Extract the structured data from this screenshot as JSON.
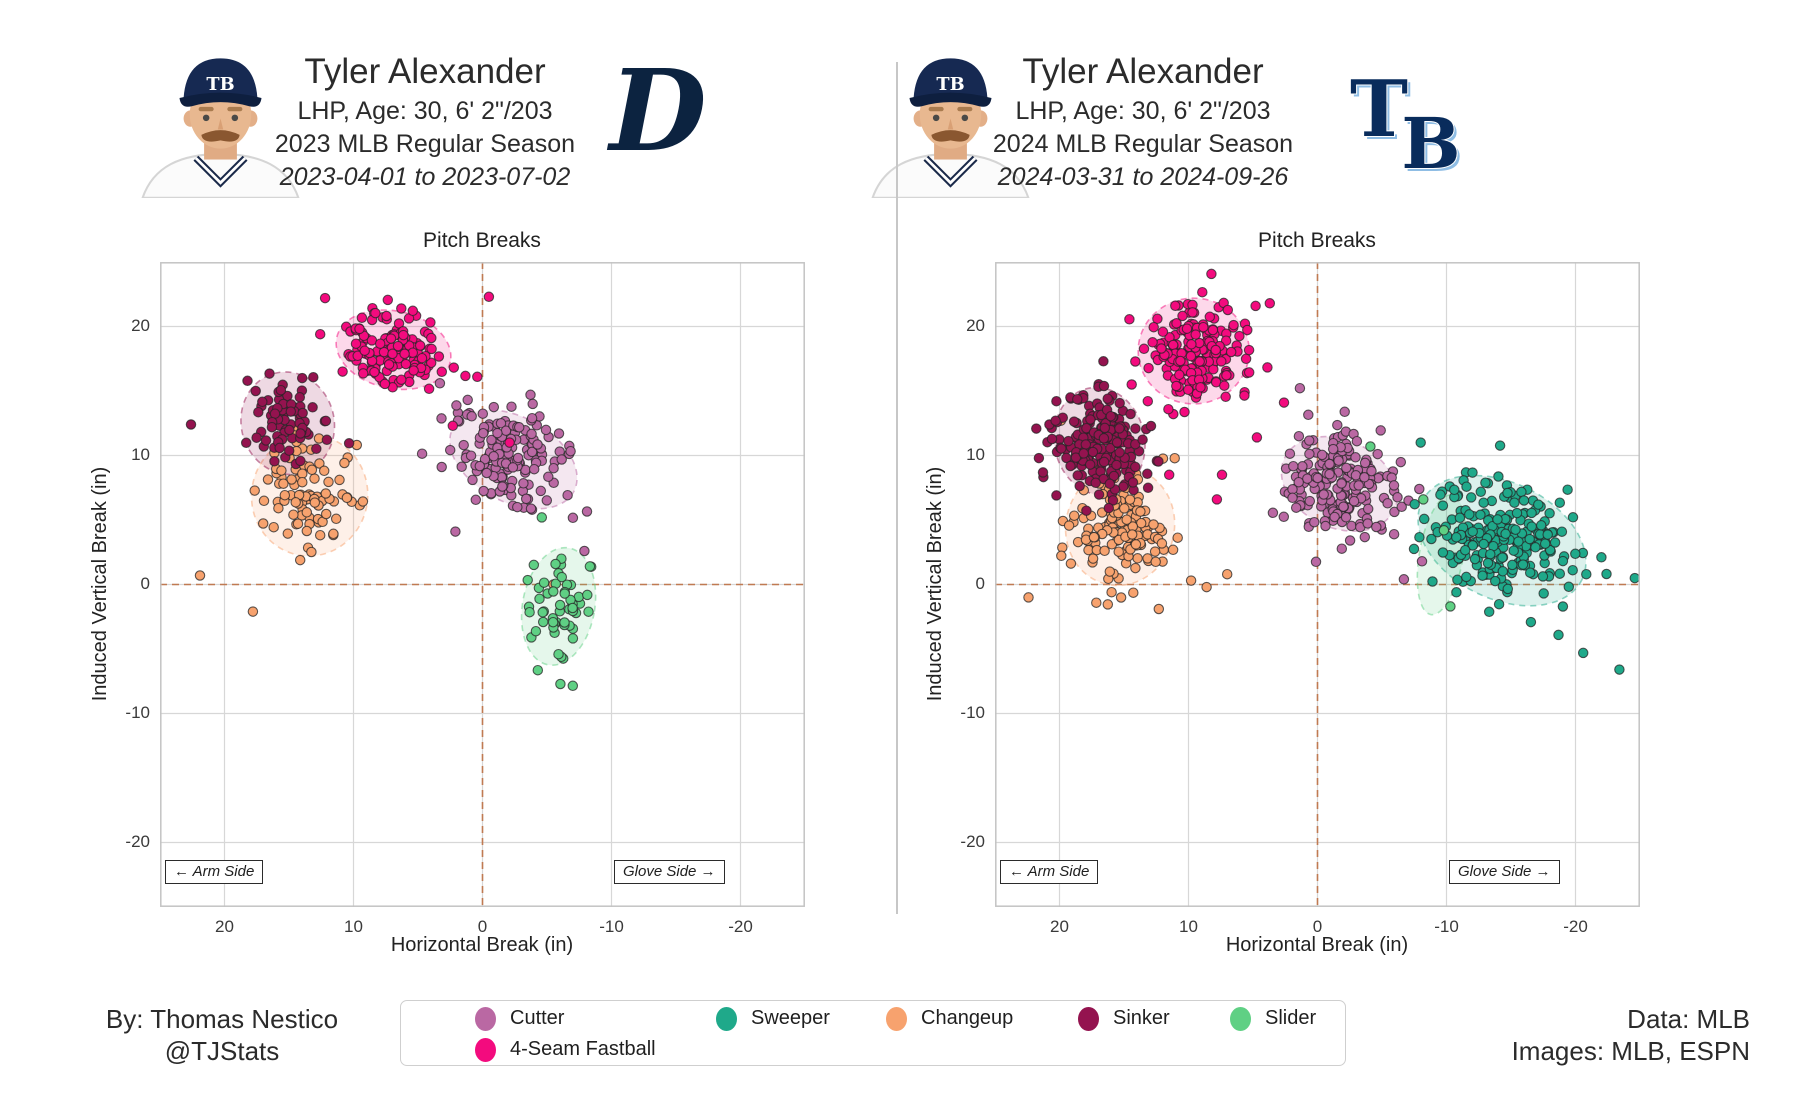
{
  "panels": [
    {
      "player": {
        "name": "Tyler Alexander",
        "bio": "LHP, Age: 30, 6' 2\"/203",
        "season": "2023 MLB Regular Season",
        "date_range": "2023-04-01 to 2023-07-02"
      },
      "team": {
        "abbr": "DET",
        "logo_letters": "D",
        "logo_color": "#0C2340"
      },
      "plot_labels": {
        "arm": "← Arm Side",
        "glove": "Glove Side →"
      }
    },
    {
      "player": {
        "name": "Tyler Alexander",
        "bio": "LHP, Age: 30, 6' 2\"/203",
        "season": "2024 MLB Regular Season",
        "date_range": "2024-03-31 to 2024-09-26"
      },
      "team": {
        "abbr": "TB",
        "logo_letters": "TB",
        "logo_color": "#092C5C",
        "logo_accent": "#8FBDE4"
      },
      "plot_labels": {
        "arm": "← Arm Side",
        "glove": "Glove Side →"
      }
    }
  ],
  "cap_logo_text": "TB",
  "footer": {
    "credit_line1": "By: Thomas Nestico",
    "credit_line2": "@TJStats",
    "source_line1": "Data: MLB",
    "source_line2": "Images: MLB, ESPN"
  },
  "legend": {
    "items": [
      {
        "label": "Cutter",
        "color": "#BA68A3"
      },
      {
        "label": "Sweeper",
        "color": "#1FA98A"
      },
      {
        "label": "Changeup",
        "color": "#F7A26E"
      },
      {
        "label": "Sinker",
        "color": "#94134F"
      },
      {
        "label": "Slider",
        "color": "#5FD084"
      },
      {
        "label": "4-Seam Fastball",
        "color": "#F30B7E"
      }
    ]
  },
  "style": {
    "grid": "#d7d7d7",
    "frame": "#c3c3c3",
    "crosshair": "#c07a52",
    "point_edge": "#262626",
    "ellipse_fill_alpha": 0.16,
    "ellipse_stroke_alpha": 0.5
  },
  "chart_data": [
    {
      "panel": "2023 MLB Regular Season (DET)",
      "type": "scatter",
      "title": "Pitch Breaks",
      "xlabel": "Horizontal Break (in)",
      "ylabel": "Induced Vertical Break (in)",
      "x_ticks": [
        20,
        10,
        0,
        -10,
        -20
      ],
      "y_ticks": [
        20,
        10,
        0,
        -10,
        -20
      ],
      "xlim": [
        25,
        -25
      ],
      "ylim": [
        -25,
        25
      ],
      "grid": true,
      "zero_crosshair": true,
      "points_note": "Dense point clouds regenerated from digitized cluster params: cx/cy = cluster mean (in), sx/sy = std dev (in), tilt = major-axis angle (deg), n = pitch count; extra = individually digitized outlier points [HB, IVB].",
      "clusters": [
        {
          "pitch": "Cutter",
          "color": "#BA68A3",
          "n": 160,
          "cx": -2.4,
          "cy": 9.7,
          "sx": 2.5,
          "sy": 1.7,
          "tilt": 28,
          "extra": [
            [
              3.3,
              15.6
            ],
            [
              1.9,
              12.7
            ],
            [
              2.1,
              4.1
            ],
            [
              -7.9,
              2.6
            ]
          ],
          "ellipse": {
            "rx": 5.3,
            "ry": 3.3
          }
        },
        {
          "pitch": "4-Seam Fastball",
          "color": "#F30B7E",
          "n": 148,
          "cx": 6.9,
          "cy": 18.2,
          "sx": 2.1,
          "sy": 1.5,
          "tilt": 12,
          "extra": [
            [
              -0.5,
              22.3
            ],
            [
              0.4,
              16.1
            ],
            [
              2.3,
              12.3
            ],
            [
              -2.1,
              11.0
            ],
            [
              12.2,
              22.2
            ]
          ],
          "ellipse": {
            "rx": 4.5,
            "ry": 3.0
          }
        },
        {
          "pitch": "Changeup",
          "color": "#F7A26E",
          "n": 92,
          "cx": 13.4,
          "cy": 6.9,
          "sx": 1.9,
          "sy": 2.0,
          "tilt": 10,
          "extra": [
            [
              21.9,
              0.7
            ],
            [
              17.8,
              -2.1
            ],
            [
              -5.5,
              0.0
            ]
          ],
          "ellipse": {
            "rx": 4.5,
            "ry": 4.7
          }
        },
        {
          "pitch": "Sinker",
          "color": "#94134F",
          "n": 76,
          "cx": 15.1,
          "cy": 12.5,
          "sx": 1.7,
          "sy": 1.8,
          "tilt": -15,
          "extra": [
            [
              22.6,
              12.4
            ]
          ],
          "ellipse": {
            "rx": 3.6,
            "ry": 4.0
          }
        },
        {
          "pitch": "Slider",
          "color": "#5FD084",
          "n": 55,
          "cx": -5.9,
          "cy": -1.7,
          "sx": 1.4,
          "sy": 2.2,
          "tilt": 10,
          "extra": [
            [
              -4.6,
              5.2
            ]
          ],
          "ellipse": {
            "rx": 2.8,
            "ry": 4.6
          }
        }
      ]
    },
    {
      "panel": "2024 MLB Regular Season (TB)",
      "type": "scatter",
      "title": "Pitch Breaks",
      "xlabel": "Horizontal Break (in)",
      "ylabel": "Induced Vertical Break (in)",
      "x_ticks": [
        20,
        10,
        0,
        -10,
        -20
      ],
      "y_ticks": [
        20,
        10,
        0,
        -10,
        -20
      ],
      "xlim": [
        25,
        -25
      ],
      "ylim": [
        -25,
        25
      ],
      "grid": true,
      "zero_crosshair": true,
      "points_note": "Dense point clouds regenerated from digitized cluster params: cx/cy = cluster mean (in), sx/sy = std dev (in), tilt = major-axis angle (deg), n = pitch count; extra = individually digitized outlier points [HB, IVB].",
      "clusters": [
        {
          "pitch": "Cutter",
          "color": "#BA68A3",
          "n": 205,
          "cx": -1.7,
          "cy": 7.8,
          "sx": 2.2,
          "sy": 2.0,
          "tilt": 25,
          "extra": [
            [
              -6.7,
              0.4
            ],
            [
              -8.1,
              1.8
            ],
            [
              -11.5,
              3.5
            ]
          ],
          "ellipse": {
            "rx": 4.7,
            "ry": 3.4
          }
        },
        {
          "pitch": "4-Seam Fastball",
          "color": "#F30B7E",
          "n": 182,
          "cx": 9.6,
          "cy": 18.1,
          "sx": 1.9,
          "sy": 1.8,
          "tilt": 0,
          "extra": [
            [
              14.4,
              15.5
            ],
            [
              2.6,
              14.1
            ],
            [
              4.7,
              11.4
            ],
            [
              7.4,
              8.5
            ],
            [
              11.5,
              8.5
            ],
            [
              7.8,
              6.6
            ],
            [
              4.8,
              21.6
            ],
            [
              3.7,
              21.8
            ]
          ],
          "ellipse": {
            "rx": 4.3,
            "ry": 4.1
          }
        },
        {
          "pitch": "Sweeper",
          "color": "#1FA98A",
          "n": 248,
          "cx": -14.3,
          "cy": 3.4,
          "sx": 2.9,
          "sy": 2.2,
          "tilt": 26,
          "extra": [
            [
              -24.6,
              0.5
            ],
            [
              -23.4,
              -6.6
            ],
            [
              -20.6,
              -5.3
            ],
            [
              -8.0,
              11.0
            ]
          ],
          "ellipse": {
            "rx": 6.9,
            "ry": 4.5
          }
        },
        {
          "pitch": "Changeup",
          "color": "#F7A26E",
          "n": 146,
          "cx": 15.3,
          "cy": 4.5,
          "sx": 1.9,
          "sy": 2.1,
          "tilt": 15,
          "extra": [
            [
              9.8,
              0.3
            ],
            [
              8.6,
              -0.2
            ],
            [
              7.0,
              0.8
            ],
            [
              12.3,
              -1.9
            ],
            [
              22.4,
              -1.0
            ],
            [
              19.9,
              12.7
            ]
          ],
          "ellipse": {
            "rx": 4.2,
            "ry": 4.6
          }
        },
        {
          "pitch": "Sinker",
          "color": "#94134F",
          "n": 196,
          "cx": 16.9,
          "cy": 11.1,
          "sx": 1.6,
          "sy": 1.9,
          "tilt": -12,
          "extra": [
            [
              16.6,
              17.3
            ],
            [
              20.3,
              12.7
            ],
            [
              21.6,
              9.8
            ]
          ],
          "ellipse": {
            "rx": 3.5,
            "ry": 4.2
          }
        },
        {
          "pitch": "Slider",
          "color": "#5FD084",
          "n": 0,
          "cx": -9.6,
          "cy": 2.3,
          "sx": 1.0,
          "sy": 3.0,
          "tilt": 10,
          "extra": [
            [
              -8.2,
              6.6
            ],
            [
              -9.8,
              4.2
            ],
            [
              -10.3,
              -1.7
            ],
            [
              -4.1,
              10.7
            ]
          ],
          "ellipse": {
            "rx": 1.7,
            "ry": 4.7
          }
        }
      ]
    }
  ]
}
